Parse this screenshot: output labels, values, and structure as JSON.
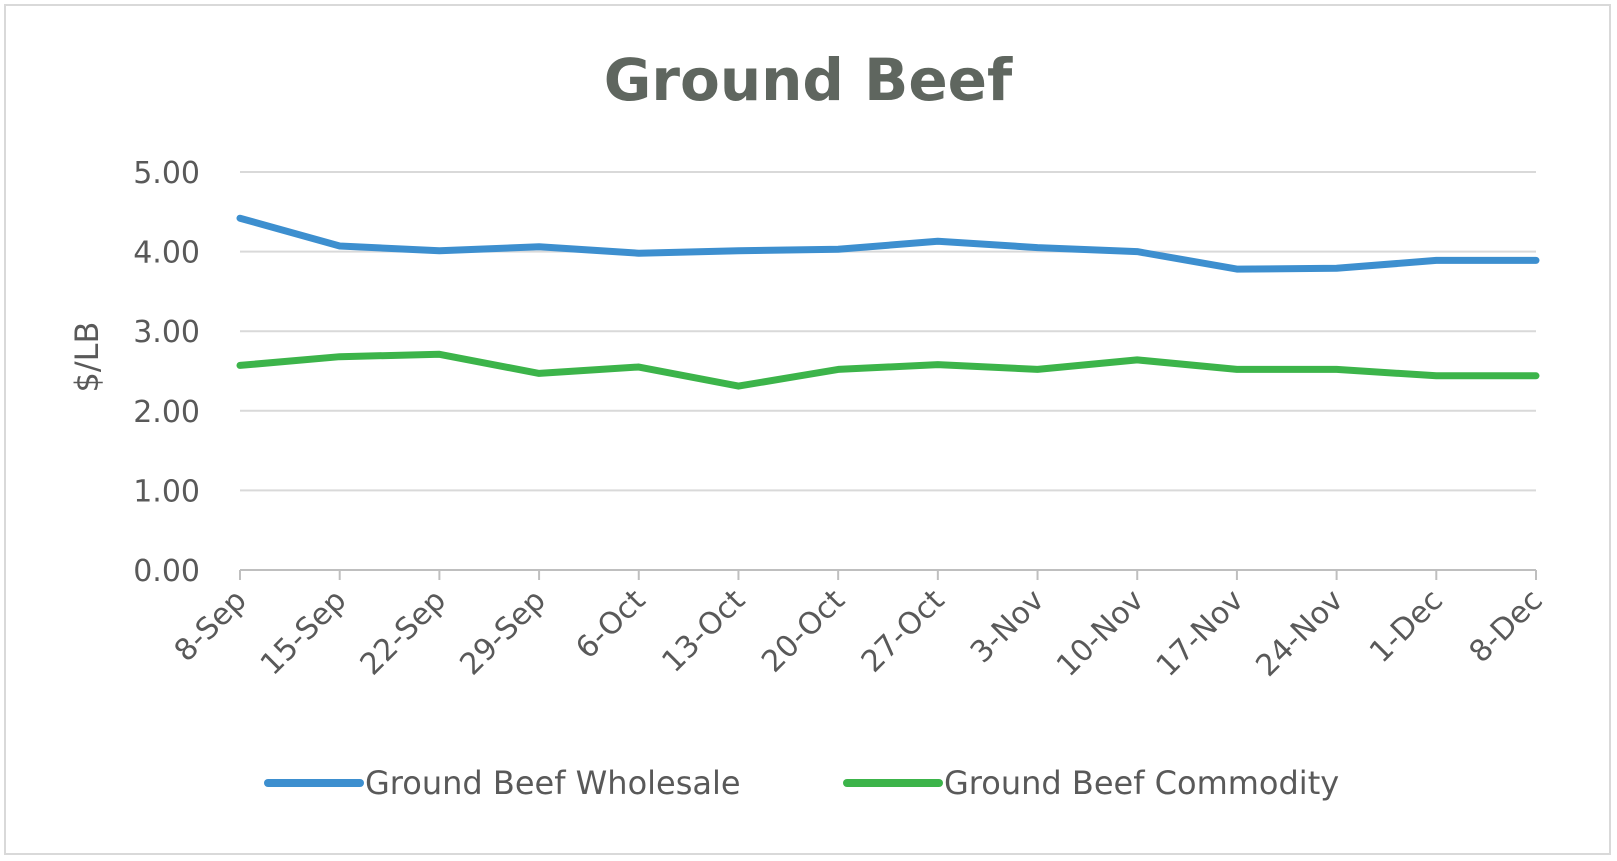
{
  "chart_data": {
    "type": "line",
    "title": "Ground Beef",
    "xlabel": "",
    "ylabel": "$/LB",
    "ylim": [
      0,
      5
    ],
    "yticks": [
      "0.00",
      "1.00",
      "2.00",
      "3.00",
      "4.00",
      "5.00"
    ],
    "grid": true,
    "legend_position": "bottom",
    "categories": [
      "8-Sep",
      "15-Sep",
      "22-Sep",
      "29-Sep",
      "6-Oct",
      "13-Oct",
      "20-Oct",
      "27-Oct",
      "3-Nov",
      "10-Nov",
      "17-Nov",
      "24-Nov",
      "1-Dec",
      "8-Dec"
    ],
    "series": [
      {
        "name": "Ground Beef Wholesale",
        "color": "#3d8fcf",
        "values": [
          4.42,
          4.07,
          4.01,
          4.06,
          3.98,
          4.01,
          4.03,
          4.13,
          4.05,
          4.0,
          3.78,
          3.79,
          3.89,
          3.89
        ]
      },
      {
        "name": "Ground Beef Commodity",
        "color": "#3cb44a",
        "values": [
          2.57,
          2.68,
          2.71,
          2.47,
          2.55,
          2.31,
          2.52,
          2.58,
          2.52,
          2.64,
          2.52,
          2.52,
          2.44,
          2.44
        ]
      }
    ]
  }
}
